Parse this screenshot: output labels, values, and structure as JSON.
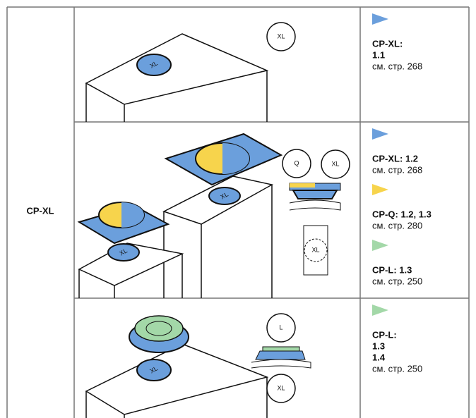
{
  "left_label": "CP-XL",
  "rows": [
    {
      "labels": [
        "XL",
        "XL"
      ],
      "notes": [
        {
          "color": "#6b9fdc",
          "lines": [
            "CP-XL:",
            "1.1"
          ],
          "page": "см. стр. 268"
        }
      ]
    },
    {
      "labels": [
        "XL",
        "XL",
        "Q",
        "XL",
        "XL"
      ],
      "notes": [
        {
          "color": "#6b9fdc",
          "lines": [
            "CP-XL: 1.2"
          ],
          "page": "см. стр. 268"
        },
        {
          "color": "#f7d44c",
          "lines": [
            "CP-Q: 1.2, 1.3"
          ],
          "page": "см. стр. 280"
        },
        {
          "color": "#a3d8a8",
          "lines": [
            "CP-L: 1.3"
          ],
          "page": "см. стр. 250"
        }
      ]
    },
    {
      "labels": [
        "XL",
        "L",
        "XL"
      ],
      "notes": [
        {
          "color": "#a3d8a8",
          "lines": [
            "CP-L:",
            "1.3",
            "1.4"
          ],
          "page": "см. стр. 250"
        }
      ]
    }
  ]
}
